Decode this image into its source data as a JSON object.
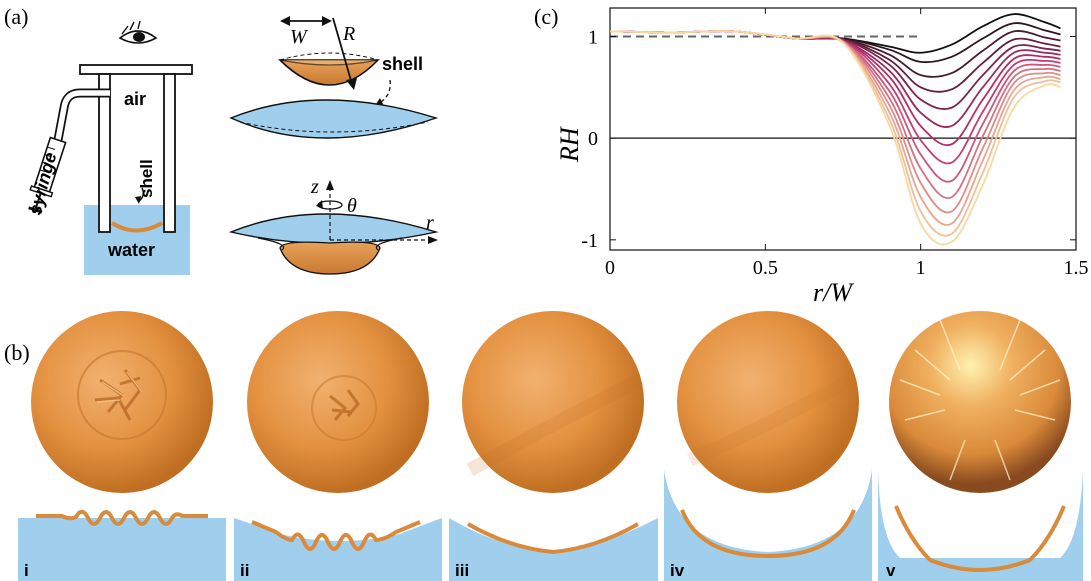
{
  "panels": {
    "a": {
      "label": "(a)",
      "air": "air",
      "syringe": "syringe",
      "shell_vertical": "shell",
      "water": "water",
      "W": "W",
      "R": "R",
      "shell": "shell",
      "z": "z",
      "theta": "θ",
      "r": "r"
    },
    "b": {
      "label": "(b)",
      "stages": [
        "i",
        "ii",
        "iii",
        "iv",
        "v"
      ]
    },
    "c": {
      "label": "(c)"
    }
  },
  "colors": {
    "water": "#9fcfec",
    "shell": "#d98a3a",
    "shell_light": "#e8a15a",
    "shell_stroke": "#c9782a",
    "gradient_dark": "#111111",
    "gradient_mid": "#c0306e",
    "gradient_light": "#f7d9a0"
  },
  "chart_data": {
    "type": "line",
    "title": "",
    "xlabel": "r/W",
    "ylabel": "RH",
    "xlim": [
      0,
      1.5
    ],
    "ylim": [
      -1.1,
      1.28
    ],
    "xticks": [
      0,
      0.5,
      1,
      1.5
    ],
    "xtick_labels": [
      "0",
      "0.5",
      "1",
      "1.5"
    ],
    "yticks": [
      -1,
      0,
      1
    ],
    "ytick_labels": [
      "-1",
      "0",
      "1"
    ],
    "reference_lines": [
      {
        "type": "hline",
        "y": 0,
        "style": "solid"
      },
      {
        "type": "hline",
        "y": 1,
        "x_range": [
          0,
          1.0
        ],
        "style": "dashed"
      }
    ],
    "series": [
      {
        "x": [
          0,
          0.2,
          0.4,
          0.6,
          0.75,
          0.9,
          1.0,
          1.1,
          1.2,
          1.3,
          1.4,
          1.45
        ],
        "y": [
          1.05,
          1.04,
          1.05,
          0.98,
          0.98,
          0.9,
          0.84,
          0.92,
          1.1,
          1.22,
          1.14,
          1.08
        ]
      },
      {
        "x": [
          0,
          0.2,
          0.4,
          0.6,
          0.75,
          0.9,
          1.0,
          1.1,
          1.2,
          1.3,
          1.4,
          1.45
        ],
        "y": [
          1.05,
          1.04,
          1.05,
          0.98,
          0.98,
          0.87,
          0.75,
          0.8,
          0.98,
          1.13,
          1.06,
          1.02
        ]
      },
      {
        "x": [
          0,
          0.2,
          0.4,
          0.6,
          0.75,
          0.9,
          1.0,
          1.1,
          1.2,
          1.3,
          1.4,
          1.45
        ],
        "y": [
          1.05,
          1.04,
          1.05,
          0.98,
          0.97,
          0.82,
          0.62,
          0.64,
          0.86,
          1.05,
          0.99,
          0.96
        ]
      },
      {
        "x": [
          0,
          0.2,
          0.4,
          0.6,
          0.75,
          0.9,
          1.0,
          1.1,
          1.2,
          1.3,
          1.4,
          1.45
        ],
        "y": [
          1.05,
          1.04,
          1.05,
          0.98,
          0.97,
          0.77,
          0.5,
          0.48,
          0.74,
          0.97,
          0.93,
          0.9
        ]
      },
      {
        "x": [
          0,
          0.2,
          0.4,
          0.6,
          0.75,
          0.9,
          1.0,
          1.1,
          1.2,
          1.3,
          1.4,
          1.45
        ],
        "y": [
          1.05,
          1.04,
          1.05,
          0.98,
          0.97,
          0.72,
          0.38,
          0.3,
          0.62,
          0.9,
          0.88,
          0.86
        ]
      },
      {
        "x": [
          0,
          0.2,
          0.4,
          0.6,
          0.75,
          0.9,
          1.0,
          1.1,
          1.2,
          1.3,
          1.4,
          1.45
        ],
        "y": [
          1.05,
          1.04,
          1.05,
          0.98,
          0.96,
          0.66,
          0.25,
          0.12,
          0.5,
          0.84,
          0.84,
          0.82
        ]
      },
      {
        "x": [
          0,
          0.2,
          0.4,
          0.6,
          0.75,
          0.9,
          1.0,
          1.1,
          1.2,
          1.3,
          1.4,
          1.45
        ],
        "y": [
          1.05,
          1.04,
          1.05,
          0.98,
          0.96,
          0.6,
          0.12,
          -0.06,
          0.38,
          0.78,
          0.8,
          0.78
        ]
      },
      {
        "x": [
          0,
          0.2,
          0.4,
          0.6,
          0.75,
          0.9,
          1.0,
          1.1,
          1.2,
          1.3,
          1.4,
          1.45
        ],
        "y": [
          1.05,
          1.04,
          1.05,
          0.98,
          0.96,
          0.53,
          -0.02,
          -0.24,
          0.26,
          0.72,
          0.76,
          0.74
        ]
      },
      {
        "x": [
          0,
          0.2,
          0.4,
          0.6,
          0.75,
          0.9,
          1.0,
          1.1,
          1.2,
          1.3,
          1.4,
          1.45
        ],
        "y": [
          1.05,
          1.04,
          1.05,
          0.98,
          0.95,
          0.46,
          -0.16,
          -0.42,
          0.14,
          0.66,
          0.72,
          0.7
        ]
      },
      {
        "x": [
          0,
          0.2,
          0.4,
          0.6,
          0.75,
          0.9,
          1.0,
          1.1,
          1.2,
          1.3,
          1.4,
          1.45
        ],
        "y": [
          1.05,
          1.04,
          1.05,
          0.98,
          0.95,
          0.39,
          -0.3,
          -0.58,
          0.02,
          0.6,
          0.68,
          0.66
        ]
      },
      {
        "x": [
          0,
          0.2,
          0.4,
          0.6,
          0.75,
          0.9,
          1.0,
          1.1,
          1.2,
          1.3,
          1.4,
          1.45
        ],
        "y": [
          1.05,
          1.04,
          1.05,
          0.98,
          0.95,
          0.32,
          -0.44,
          -0.72,
          -0.1,
          0.54,
          0.64,
          0.62
        ]
      },
      {
        "x": [
          0,
          0.2,
          0.4,
          0.6,
          0.75,
          0.9,
          1.0,
          1.1,
          1.2,
          1.3,
          1.4,
          1.45
        ],
        "y": [
          1.05,
          1.04,
          1.05,
          0.98,
          0.94,
          0.25,
          -0.58,
          -0.84,
          -0.22,
          0.47,
          0.6,
          0.58
        ]
      },
      {
        "x": [
          0,
          0.2,
          0.4,
          0.6,
          0.75,
          0.9,
          1.0,
          1.1,
          1.2,
          1.3,
          1.4,
          1.45
        ],
        "y": [
          1.05,
          1.04,
          1.05,
          0.98,
          0.94,
          0.18,
          -0.72,
          -0.94,
          -0.34,
          0.4,
          0.56,
          0.55
        ]
      },
      {
        "x": [
          0,
          0.2,
          0.4,
          0.6,
          0.75,
          0.9,
          1.0,
          1.1,
          1.2,
          1.3,
          1.4,
          1.45
        ],
        "y": [
          1.05,
          1.04,
          1.05,
          0.98,
          0.94,
          0.12,
          -0.84,
          -1.02,
          -0.46,
          0.3,
          0.52,
          0.5
        ]
      }
    ]
  }
}
